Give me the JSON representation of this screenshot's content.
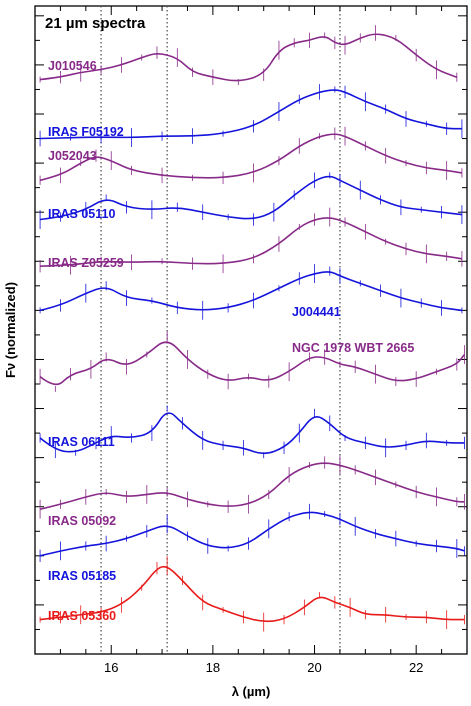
{
  "chart_data": {
    "type": "line",
    "title": "21 µm spectra",
    "xlabel": "λ (µm)",
    "ylabel": "Fν (normalized)",
    "xlim": [
      14.5,
      23.0
    ],
    "xticks": [
      16,
      18,
      20,
      22
    ],
    "reference_lines_um": [
      15.8,
      17.1,
      20.5
    ],
    "grid": false,
    "colors": {
      "purple": "#882a88",
      "blue": "#1414dc",
      "red": "#e81a1a",
      "guide": "#555555"
    },
    "series": [
      {
        "name": "J010546",
        "color": "#882a88",
        "offset": 11.6,
        "x": [
          14.6,
          15.0,
          15.4,
          15.8,
          16.2,
          16.6,
          16.9,
          17.3,
          17.6,
          18.0,
          18.5,
          19.0,
          19.3,
          19.6,
          19.9,
          20.2,
          20.4,
          20.6,
          20.9,
          21.2,
          21.6,
          22.0,
          22.4,
          22.8
        ],
        "y": [
          0.1,
          0.15,
          0.25,
          0.3,
          0.4,
          0.55,
          0.65,
          0.55,
          0.25,
          0.15,
          0.05,
          0.2,
          0.7,
          0.85,
          0.9,
          1.0,
          0.85,
          0.8,
          0.95,
          1.05,
          0.95,
          0.6,
          0.3,
          0.15
        ]
      },
      {
        "name": "IRAS F05192",
        "color": "#1414dc",
        "offset": 10.5,
        "x": [
          14.6,
          15.2,
          15.8,
          16.4,
          17.0,
          17.6,
          18.2,
          18.8,
          19.3,
          19.7,
          20.1,
          20.4,
          20.6,
          21.0,
          21.4,
          21.8,
          22.2,
          22.6,
          22.9
        ],
        "y": [
          0.0,
          0.02,
          0.03,
          0.02,
          0.05,
          0.05,
          0.1,
          0.25,
          0.55,
          0.8,
          0.95,
          1.0,
          0.95,
          0.75,
          0.6,
          0.4,
          0.3,
          0.2,
          0.2
        ]
      },
      {
        "name": "J052043",
        "color": "#882a88",
        "offset": 9.6,
        "x": [
          14.6,
          15.0,
          15.4,
          15.7,
          16.0,
          16.4,
          17.0,
          17.6,
          18.2,
          18.8,
          19.3,
          19.7,
          20.1,
          20.4,
          20.6,
          21.0,
          21.4,
          21.8,
          22.2,
          22.6,
          22.9
        ],
        "y": [
          0.05,
          0.15,
          0.4,
          0.55,
          0.45,
          0.25,
          0.15,
          0.1,
          0.1,
          0.2,
          0.45,
          0.75,
          0.95,
          1.0,
          0.95,
          0.75,
          0.55,
          0.4,
          0.3,
          0.25,
          0.2
        ]
      },
      {
        "name": "IRAS 05110",
        "color": "#1414dc",
        "offset": 8.75,
        "x": [
          14.6,
          15.0,
          15.5,
          15.9,
          16.3,
          16.8,
          17.3,
          17.8,
          18.3,
          18.8,
          19.2,
          19.6,
          20.0,
          20.3,
          20.5,
          20.9,
          21.3,
          21.7,
          22.1,
          22.5,
          22.9
        ],
        "y": [
          0.1,
          0.15,
          0.3,
          0.55,
          0.35,
          0.3,
          0.35,
          0.25,
          0.15,
          0.1,
          0.25,
          0.6,
          0.9,
          1.0,
          0.9,
          0.7,
          0.5,
          0.35,
          0.3,
          0.25,
          0.2
        ]
      },
      {
        "name": "IRAS Z05259",
        "color": "#882a88",
        "offset": 7.9,
        "x": [
          14.6,
          15.2,
          15.8,
          16.4,
          17.0,
          17.6,
          18.2,
          18.8,
          19.3,
          19.7,
          20.0,
          20.3,
          20.6,
          21.0,
          21.4,
          21.8,
          22.2,
          22.6,
          22.9
        ],
        "y": [
          0.0,
          0.02,
          0.1,
          0.08,
          0.1,
          0.05,
          0.05,
          0.15,
          0.45,
          0.8,
          0.95,
          1.0,
          0.9,
          0.7,
          0.5,
          0.35,
          0.25,
          0.2,
          0.15
        ]
      },
      {
        "name": "J004441",
        "color": "#1414dc",
        "offset": 6.9,
        "x": [
          14.6,
          15.0,
          15.5,
          15.9,
          16.3,
          16.8,
          17.3,
          17.8,
          18.3,
          18.8,
          19.3,
          19.7,
          20.0,
          20.3,
          20.5,
          20.9,
          21.3,
          21.7,
          22.1,
          22.5,
          22.9
        ],
        "y": [
          0.1,
          0.2,
          0.45,
          0.6,
          0.35,
          0.3,
          0.15,
          0.1,
          0.15,
          0.3,
          0.55,
          0.75,
          0.85,
          0.9,
          0.8,
          0.65,
          0.5,
          0.35,
          0.25,
          0.15,
          0.1
        ]
      },
      {
        "name": "NGC 1978 WBT 2665",
        "color": "#882a88",
        "offset": 5.35,
        "x": [
          14.6,
          14.9,
          15.2,
          15.6,
          15.9,
          16.3,
          16.7,
          17.1,
          17.5,
          17.9,
          18.3,
          18.7,
          19.1,
          19.5,
          19.9,
          20.2,
          20.5,
          20.8,
          21.2,
          21.6,
          22.0,
          22.4,
          22.8,
          22.95
        ],
        "y": [
          0.3,
          0.05,
          0.35,
          0.45,
          0.7,
          0.5,
          0.75,
          1.1,
          0.65,
          0.35,
          0.2,
          0.3,
          0.2,
          0.4,
          0.7,
          0.7,
          0.55,
          0.5,
          0.35,
          0.2,
          0.25,
          0.4,
          0.55,
          0.75
        ]
      },
      {
        "name": "IRAS 06111",
        "color": "#1414dc",
        "offset": 4.0,
        "x": [
          14.6,
          14.9,
          15.3,
          15.7,
          16.0,
          16.4,
          16.8,
          17.1,
          17.4,
          17.8,
          18.2,
          18.6,
          19.0,
          19.4,
          19.7,
          20.0,
          20.3,
          20.6,
          21.0,
          21.4,
          21.8,
          22.2,
          22.6,
          22.95
        ],
        "y": [
          0.4,
          0.15,
          0.1,
          0.3,
          0.45,
          0.4,
          0.5,
          1.0,
          0.7,
          0.35,
          0.25,
          0.2,
          0.05,
          0.2,
          0.5,
          0.9,
          0.7,
          0.4,
          0.3,
          0.2,
          0.25,
          0.35,
          0.3,
          0.3
        ]
      },
      {
        "name": "IRAS 05092",
        "color": "#882a88",
        "offset": 2.9,
        "x": [
          14.6,
          15.0,
          15.5,
          15.9,
          16.3,
          16.7,
          17.1,
          17.5,
          17.9,
          18.3,
          18.7,
          19.1,
          19.5,
          19.9,
          20.2,
          20.5,
          20.8,
          21.2,
          21.6,
          22.0,
          22.4,
          22.8,
          22.95
        ],
        "y": [
          0.05,
          0.15,
          0.3,
          0.4,
          0.3,
          0.35,
          0.4,
          0.25,
          0.15,
          0.1,
          0.15,
          0.35,
          0.75,
          0.95,
          1.0,
          0.95,
          0.85,
          0.7,
          0.55,
          0.4,
          0.3,
          0.2,
          0.2
        ]
      },
      {
        "name": "IRAS 05185",
        "color": "#1414dc",
        "offset": 1.9,
        "x": [
          14.6,
          15.0,
          15.5,
          15.9,
          16.3,
          16.7,
          17.1,
          17.5,
          17.9,
          18.3,
          18.7,
          19.1,
          19.5,
          19.9,
          20.2,
          20.5,
          20.8,
          21.2,
          21.6,
          22.0,
          22.4,
          22.8,
          22.95
        ],
        "y": [
          0.1,
          0.2,
          0.3,
          0.35,
          0.45,
          0.6,
          0.75,
          0.5,
          0.3,
          0.25,
          0.35,
          0.65,
          0.9,
          1.0,
          0.95,
          0.85,
          0.7,
          0.55,
          0.45,
          0.35,
          0.3,
          0.25,
          0.2
        ]
      },
      {
        "name": "IRAS 05360",
        "color": "#e81a1a",
        "offset": 0.6,
        "x": [
          14.6,
          15.0,
          15.4,
          15.8,
          16.2,
          16.6,
          16.9,
          17.1,
          17.4,
          17.8,
          18.2,
          18.6,
          19.0,
          19.4,
          19.8,
          20.1,
          20.4,
          20.7,
          21.0,
          21.4,
          21.8,
          22.2,
          22.6,
          22.95
        ],
        "y": [
          0.1,
          0.15,
          0.2,
          0.25,
          0.4,
          0.75,
          1.15,
          1.2,
          0.9,
          0.45,
          0.3,
          0.15,
          0.05,
          0.1,
          0.35,
          0.6,
          0.45,
          0.35,
          0.2,
          0.2,
          0.15,
          0.15,
          0.1,
          0.1
        ]
      }
    ]
  }
}
